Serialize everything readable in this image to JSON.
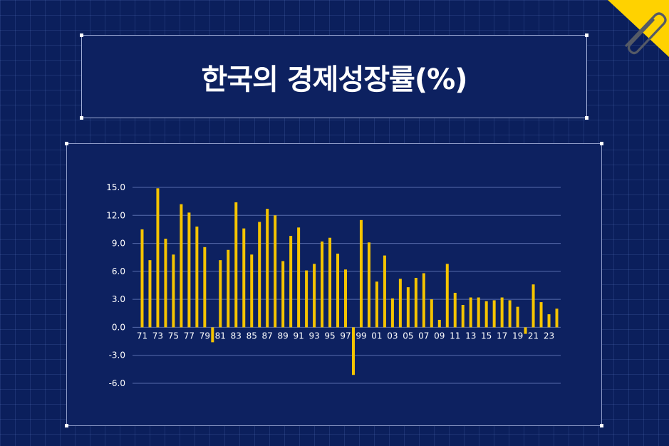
{
  "title": "한국의 경제성장률(%)",
  "colors": {
    "background": "#0b1f5c",
    "panel": "#0d2160",
    "bar": "#f5c400",
    "grid": "#6a7fc0",
    "text": "#ffffff",
    "accent": "#ffd200"
  },
  "icons": {
    "corner": "paperclip-icon"
  },
  "chart_data": {
    "type": "bar",
    "title": "한국의 경제성장률(%)",
    "xlabel": "",
    "ylabel": "",
    "ylim": [
      -6.0,
      15.0
    ],
    "yticks": [
      "15.0",
      "12.0",
      "9.0",
      "6.0",
      "3.0",
      "0.0",
      "-3.0",
      "-6.0"
    ],
    "categories": [
      "71",
      "72",
      "73",
      "74",
      "75",
      "76",
      "77",
      "78",
      "79",
      "80",
      "81",
      "82",
      "83",
      "84",
      "85",
      "86",
      "87",
      "88",
      "89",
      "90",
      "91",
      "92",
      "93",
      "94",
      "95",
      "96",
      "97",
      "98",
      "99",
      "00",
      "01",
      "02",
      "03",
      "04",
      "05",
      "06",
      "07",
      "08",
      "09",
      "10",
      "11",
      "12",
      "13",
      "14",
      "15",
      "16",
      "17",
      "18",
      "19",
      "20",
      "21",
      "22",
      "23",
      "24"
    ],
    "xtick_labels": [
      "71",
      "73",
      "75",
      "77",
      "79",
      "81",
      "83",
      "85",
      "87",
      "89",
      "91",
      "93",
      "95",
      "97",
      "99",
      "01",
      "03",
      "05",
      "07",
      "09",
      "11",
      "13",
      "15",
      "17",
      "19",
      "21",
      "23"
    ],
    "values": [
      10.5,
      7.2,
      14.9,
      9.5,
      7.8,
      13.2,
      12.3,
      10.8,
      8.6,
      -1.6,
      7.2,
      8.3,
      13.4,
      10.6,
      7.8,
      11.3,
      12.7,
      12.0,
      7.1,
      9.8,
      10.7,
      6.1,
      6.8,
      9.2,
      9.6,
      7.9,
      6.2,
      -5.1,
      11.5,
      9.1,
      4.9,
      7.7,
      3.1,
      5.2,
      4.3,
      5.3,
      5.8,
      3.0,
      0.8,
      6.8,
      3.7,
      2.4,
      3.2,
      3.2,
      2.8,
      2.9,
      3.2,
      2.9,
      2.2,
      -0.7,
      4.6,
      2.7,
      1.4,
      2.0
    ],
    "grid": true,
    "legend": "none"
  }
}
